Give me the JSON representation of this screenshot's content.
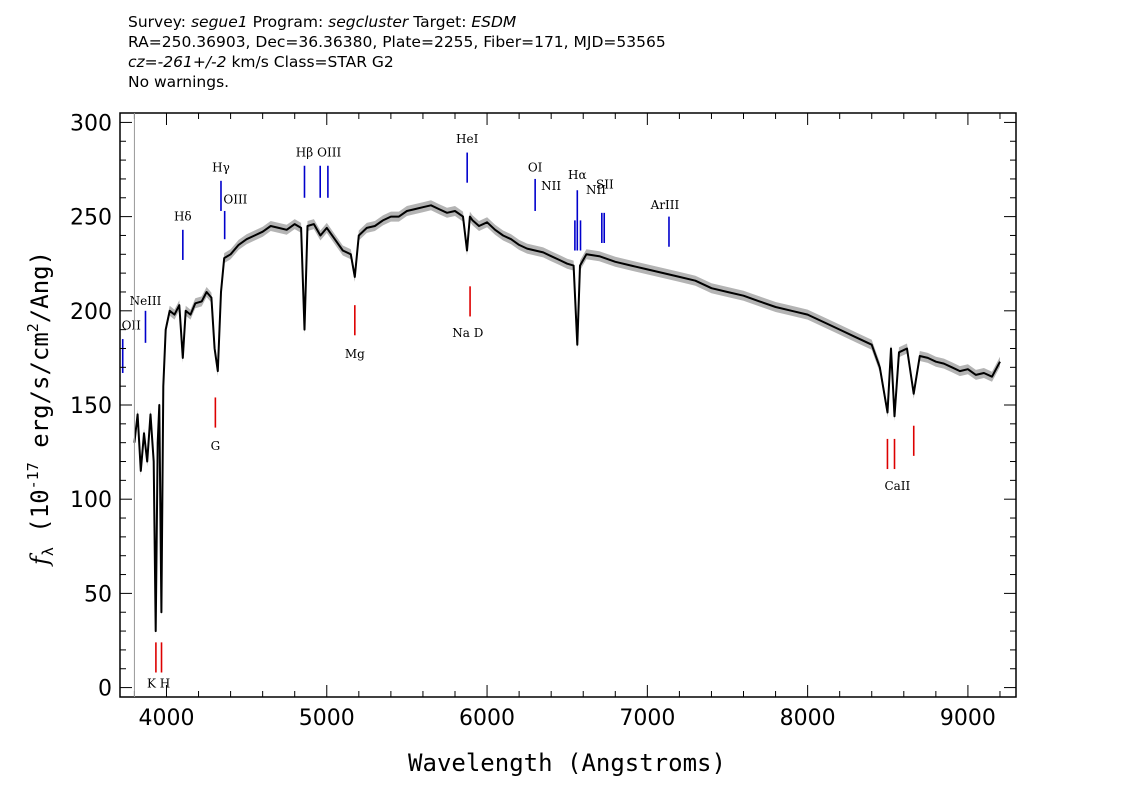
{
  "header": {
    "survey_label": "Survey:",
    "survey": "segue1",
    "program_label": "Program:",
    "program": "segcluster",
    "target_label": "Target:",
    "target": "ESDM",
    "line2": "RA=250.36903, Dec=36.36380, Plate=2255, Fiber=171, MJD=53565",
    "cz_label": "cz=",
    "cz": "-261+/-2",
    "cz_units": "km/s",
    "class_text": "Class=STAR G2",
    "warnings": "No warnings."
  },
  "colors": {
    "spectrum": "#000000",
    "error_band": "#b4b4b4",
    "emission": "#0000cc",
    "absorption": "#dd0000",
    "axes": "#000000"
  },
  "chart_data": {
    "type": "line",
    "xlabel": "Wavelength (Angstroms)",
    "ylabel": "f_λ (10^-17 erg/s/cm^2/Ang)",
    "xlim": [
      3710,
      9300
    ],
    "ylim": [
      -5,
      305
    ],
    "xticks": [
      4000,
      5000,
      6000,
      7000,
      8000,
      9000
    ],
    "yticks": [
      0,
      50,
      100,
      150,
      200,
      250,
      300
    ],
    "grid": false,
    "series": [
      {
        "x": [
          3800,
          3820,
          3840,
          3860,
          3880,
          3900,
          3920,
          3933,
          3945,
          3955,
          3968,
          3980,
          3995,
          4020,
          4050,
          4080,
          4102,
          4120,
          4150,
          4180,
          4220,
          4250,
          4280,
          4300,
          4320,
          4340,
          4360,
          4400,
          4450,
          4500,
          4550,
          4600,
          4650,
          4700,
          4750,
          4800,
          4840,
          4861,
          4880,
          4920,
          4960,
          5000,
          5050,
          5100,
          5150,
          5175,
          5200,
          5250,
          5300,
          5350,
          5400,
          5450,
          5500,
          5550,
          5600,
          5650,
          5700,
          5750,
          5800,
          5850,
          5875,
          5893,
          5910,
          5950,
          6000,
          6050,
          6100,
          6150,
          6200,
          6250,
          6300,
          6350,
          6400,
          6450,
          6500,
          6540,
          6563,
          6580,
          6620,
          6700,
          6800,
          6900,
          7000,
          7100,
          7200,
          7300,
          7400,
          7500,
          7600,
          7700,
          7800,
          7900,
          8000,
          8100,
          8200,
          8300,
          8400,
          8450,
          8498,
          8520,
          8542,
          8570,
          8620,
          8662,
          8700,
          8750,
          8800,
          8850,
          8900,
          8950,
          9000,
          9050,
          9100,
          9150,
          9200
        ],
        "y": [
          130,
          145,
          115,
          135,
          120,
          145,
          120,
          30,
          130,
          150,
          40,
          160,
          190,
          200,
          198,
          203,
          175,
          200,
          198,
          204,
          205,
          210,
          207,
          180,
          168,
          210,
          228,
          230,
          235,
          238,
          240,
          242,
          245,
          244,
          243,
          246,
          244,
          190,
          245,
          246,
          240,
          244,
          238,
          232,
          230,
          218,
          240,
          244,
          245,
          248,
          250,
          250,
          253,
          254,
          255,
          256,
          254,
          252,
          253,
          250,
          232,
          250,
          248,
          245,
          247,
          243,
          240,
          238,
          235,
          233,
          232,
          231,
          229,
          227,
          225,
          224,
          182,
          224,
          230,
          229,
          226,
          224,
          222,
          220,
          218,
          216,
          212,
          210,
          208,
          205,
          202,
          200,
          198,
          194,
          190,
          186,
          182,
          170,
          146,
          180,
          144,
          178,
          180,
          156,
          176,
          175,
          173,
          172,
          170,
          168,
          169,
          166,
          167,
          165,
          173
        ]
      }
    ],
    "emission_lines": [
      {
        "label": "OII",
        "wave": 3727,
        "y": [
          167,
          185
        ]
      },
      {
        "label": "NeIII",
        "wave": 3869,
        "y": [
          183,
          200
        ]
      },
      {
        "label": "Hδ",
        "wave": 4102,
        "y": [
          227,
          243
        ]
      },
      {
        "label": "Hγ",
        "wave": 4340,
        "y": [
          253,
          269
        ]
      },
      {
        "label": "OIII",
        "wave": 4363,
        "y": [
          238,
          253
        ]
      },
      {
        "label": "Hβ",
        "wave": 4861,
        "y": [
          260,
          277
        ]
      },
      {
        "label": "OIII",
        "wave": 4959,
        "y": [
          260,
          277
        ]
      },
      {
        "label": "OIII",
        "wave": 5007,
        "y": [
          260,
          277
        ]
      },
      {
        "label": "HeI",
        "wave": 5876,
        "y": [
          268,
          284
        ]
      },
      {
        "label": "OI",
        "wave": 6300,
        "y": [
          253,
          270
        ]
      },
      {
        "label": "NII",
        "wave": 6548,
        "y": [
          232,
          248
        ]
      },
      {
        "label": "Hα",
        "wave": 6563,
        "y": [
          232,
          264
        ]
      },
      {
        "label": "NII",
        "wave": 6583,
        "y": [
          232,
          248
        ]
      },
      {
        "label": "SII",
        "wave": 6716,
        "y": [
          236,
          252
        ]
      },
      {
        "label": "SII",
        "wave": 6731,
        "y": [
          236,
          252
        ]
      },
      {
        "label": "ArIII",
        "wave": 7135,
        "y": [
          234,
          250
        ]
      }
    ],
    "absorption_lines": [
      {
        "label": "K",
        "wave": 3934,
        "y": [
          8,
          24
        ]
      },
      {
        "label": "H",
        "wave": 3969,
        "y": [
          8,
          24
        ]
      },
      {
        "label": "G",
        "wave": 4305,
        "y": [
          138,
          154
        ]
      },
      {
        "label": "Mg",
        "wave": 5175,
        "y": [
          187,
          203
        ]
      },
      {
        "label": "Na D",
        "wave": 5894,
        "y": [
          197,
          213
        ]
      },
      {
        "label": "CaII",
        "wave": 8498,
        "y": [
          116,
          132
        ]
      },
      {
        "label": "CaII",
        "wave": 8542,
        "y": [
          116,
          132
        ]
      },
      {
        "label": "CaII",
        "wave": 8662,
        "y": [
          123,
          139
        ]
      }
    ],
    "line_label_texts": {
      "OII": "OII",
      "NeIII": "NeIII",
      "Hδ": "Hδ",
      "Hγ": "Hγ",
      "OIII": "OIII",
      "Hβ": "Hβ",
      "HeI": "HeI",
      "OI": "OI",
      "NII": "NII",
      "Hα": "Hα",
      "SII": "SII",
      "ArIII": "ArIII",
      "KH": "K H",
      "G": "G",
      "Mg": "Mg",
      "NaD": "Na  D",
      "CaII": "CaII"
    }
  }
}
